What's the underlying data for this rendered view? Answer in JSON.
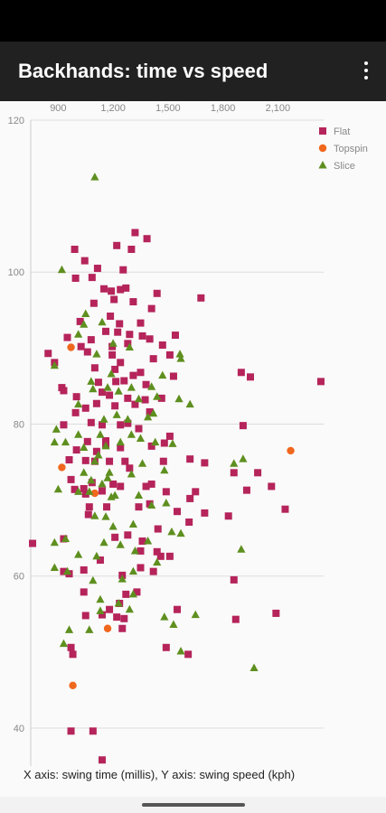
{
  "app": {
    "title": "Backhands: time vs speed",
    "menu_icon": "more-vert-icon"
  },
  "caption": "X axis: swing time (millis), Y axis: swing speed (kph)",
  "chart_data": {
    "type": "scatter",
    "title": "",
    "xlabel": "swing time (millis)",
    "ylabel": "swing speed (kph)",
    "xlim": [
      750,
      2350
    ],
    "ylim": [
      35,
      120
    ],
    "x_ticks": [
      "900",
      "1,200",
      "1,500",
      "1,800",
      "2,100"
    ],
    "x_tick_values": [
      900,
      1200,
      1500,
      1800,
      2100
    ],
    "y_ticks": [
      "40",
      "60",
      "80",
      "100",
      "120"
    ],
    "y_tick_values": [
      40,
      60,
      80,
      100,
      120
    ],
    "legend": "top-right",
    "grid": "horizontal",
    "series": [
      {
        "name": "Flat",
        "color": "#b5245a",
        "marker": "square",
        "points": [
          [
            1320,
            105.2
          ],
          [
            1385,
            104.4
          ],
          [
            1220,
            103.5
          ],
          [
            990,
            103
          ],
          [
            1300,
            103
          ],
          [
            1045,
            101.5
          ],
          [
            1115,
            100.5
          ],
          [
            1255,
            100.3
          ],
          [
            1085,
            99.3
          ],
          [
            995,
            99.2
          ],
          [
            1150,
            97.8
          ],
          [
            1190,
            97.5
          ],
          [
            1240,
            97.7
          ],
          [
            1270,
            97.9
          ],
          [
            1440,
            97.2
          ],
          [
            1680,
            96.6
          ],
          [
            1205,
            96.4
          ],
          [
            1310,
            96.1
          ],
          [
            1095,
            95.9
          ],
          [
            1410,
            95.2
          ],
          [
            1185,
            94.2
          ],
          [
            1020,
            93.5
          ],
          [
            1235,
            93.2
          ],
          [
            1350,
            93.3
          ],
          [
            1160,
            92.2
          ],
          [
            1225,
            92.1
          ],
          [
            1290,
            91.8
          ],
          [
            1360,
            91.6
          ],
          [
            1400,
            91.2
          ],
          [
            1540,
            91.7
          ],
          [
            950,
            91.4
          ],
          [
            1080,
            91.1
          ],
          [
            1280,
            90.6
          ],
          [
            1470,
            90.4
          ],
          [
            1025,
            90.2
          ],
          [
            1195,
            90.2
          ],
          [
            1060,
            89.5
          ],
          [
            1510,
            89.1
          ],
          [
            845,
            89.3
          ],
          [
            1195,
            89.1
          ],
          [
            1420,
            88.6
          ],
          [
            1240,
            88.1
          ],
          [
            880,
            88.1
          ],
          [
            1100,
            87.4
          ],
          [
            1210,
            87.2
          ],
          [
            1350,
            86.8
          ],
          [
            1310,
            86.4
          ],
          [
            1530,
            86.3
          ],
          [
            1900,
            86.8
          ],
          [
            1950,
            86.2
          ],
          [
            2335,
            85.6
          ],
          [
            1120,
            85.5
          ],
          [
            1215,
            85.6
          ],
          [
            1260,
            85.7
          ],
          [
            1380,
            85.2
          ],
          [
            920,
            84.8
          ],
          [
            1140,
            84.2
          ],
          [
            930,
            84.4
          ],
          [
            1180,
            83.8
          ],
          [
            1000,
            83.6
          ],
          [
            1280,
            83.4
          ],
          [
            1375,
            83.2
          ],
          [
            1465,
            83.4
          ],
          [
            1320,
            82.6
          ],
          [
            1110,
            82.7
          ],
          [
            1210,
            82.4
          ],
          [
            1050,
            82.1
          ],
          [
            995,
            81.5
          ],
          [
            1400,
            81.6
          ],
          [
            930,
            79.9
          ],
          [
            1080,
            80.2
          ],
          [
            1140,
            79.9
          ],
          [
            1240,
            79.9
          ],
          [
            1280,
            80.1
          ],
          [
            1340,
            79.4
          ],
          [
            1910,
            79.8
          ],
          [
            1510,
            78.4
          ],
          [
            1060,
            77.7
          ],
          [
            1160,
            77.8
          ],
          [
            1410,
            77.1
          ],
          [
            1480,
            77.5
          ],
          [
            1160,
            77.3
          ],
          [
            1240,
            76.9
          ],
          [
            1000,
            76.6
          ],
          [
            1110,
            76.4
          ],
          [
            1620,
            75.4
          ],
          [
            1475,
            75.1
          ],
          [
            960,
            75.3
          ],
          [
            1100,
            75.1
          ],
          [
            1180,
            75.1
          ],
          [
            1265,
            75.1
          ],
          [
            1700,
            74.9
          ],
          [
            1990,
            73.6
          ],
          [
            2065,
            71.8
          ],
          [
            1050,
            75.2
          ],
          [
            1290,
            74.2
          ],
          [
            1860,
            73.6
          ],
          [
            970,
            72.7
          ],
          [
            1085,
            72.3
          ],
          [
            1200,
            72.1
          ],
          [
            1410,
            72.1
          ],
          [
            1490,
            71.1
          ],
          [
            1650,
            71.1
          ],
          [
            1930,
            71.3
          ],
          [
            1140,
            71.2
          ],
          [
            1240,
            71.8
          ],
          [
            1380,
            71.8
          ],
          [
            1040,
            71.5
          ],
          [
            990,
            71.4
          ],
          [
            1050,
            70.8
          ],
          [
            1620,
            70.2
          ],
          [
            1400,
            69.5
          ],
          [
            1070,
            69.1
          ],
          [
            1165,
            69.1
          ],
          [
            1340,
            69.1
          ],
          [
            2140,
            68.8
          ],
          [
            1700,
            68.3
          ],
          [
            1550,
            68.5
          ],
          [
            1830,
            67.9
          ],
          [
            1065,
            68.1
          ],
          [
            1615,
            67.1
          ],
          [
            1445,
            66.2
          ],
          [
            1210,
            65.1
          ],
          [
            1280,
            65.4
          ],
          [
            1360,
            64.6
          ],
          [
            930,
            64.9
          ],
          [
            1350,
            63.3
          ],
          [
            760,
            64.3
          ],
          [
            1440,
            63.2
          ],
          [
            1510,
            62.6
          ],
          [
            1460,
            62.6
          ],
          [
            1130,
            62.1
          ],
          [
            930,
            60.6
          ],
          [
            1350,
            61.1
          ],
          [
            1040,
            60.8
          ],
          [
            960,
            60.3
          ],
          [
            1250,
            60.1
          ],
          [
            1420,
            60.6
          ],
          [
            1860,
            59.5
          ],
          [
            1270,
            57.6
          ],
          [
            1040,
            57.9
          ],
          [
            1330,
            57.9
          ],
          [
            1235,
            56.4
          ],
          [
            1180,
            55.6
          ],
          [
            1140,
            54.9
          ],
          [
            1220,
            54.6
          ],
          [
            1260,
            54.4
          ],
          [
            1050,
            54.8
          ],
          [
            1550,
            55.6
          ],
          [
            1870,
            54.3
          ],
          [
            2090,
            55.1
          ],
          [
            1250,
            53.1
          ],
          [
            970,
            50.6
          ],
          [
            1490,
            50.6
          ],
          [
            1610,
            49.7
          ],
          [
            980,
            49.7
          ],
          [
            970,
            39.6
          ],
          [
            1090,
            39.6
          ],
          [
            1140,
            35.8
          ]
        ]
      },
      {
        "name": "Topspin",
        "color": "#f0671e",
        "marker": "circle",
        "points": [
          [
            970,
            90.1
          ],
          [
            920,
            74.3
          ],
          [
            1100,
            70.9
          ],
          [
            1170,
            53.1
          ],
          [
            980,
            45.6
          ],
          [
            2170,
            76.5
          ]
        ]
      },
      {
        "name": "Slice",
        "color": "#5e8f1f",
        "marker": "triangle",
        "points": [
          [
            1100,
            112.5
          ],
          [
            920,
            100.3
          ],
          [
            1050,
            94.5
          ],
          [
            1040,
            93.1
          ],
          [
            1140,
            93.4
          ],
          [
            1010,
            91.8
          ],
          [
            1200,
            90.6
          ],
          [
            1290,
            90.1
          ],
          [
            1110,
            89.2
          ],
          [
            1565,
            89.2
          ],
          [
            1570,
            88.6
          ],
          [
            880,
            87.7
          ],
          [
            1470,
            86.4
          ],
          [
            1190,
            86.6
          ],
          [
            1080,
            85.6
          ],
          [
            1300,
            84.8
          ],
          [
            1170,
            84.8
          ],
          [
            1090,
            84.6
          ],
          [
            1410,
            84.9
          ],
          [
            1230,
            84.3
          ],
          [
            1440,
            83.6
          ],
          [
            1340,
            83.3
          ],
          [
            1560,
            83.3
          ],
          [
            1620,
            82.6
          ],
          [
            1010,
            82.6
          ],
          [
            1420,
            81.4
          ],
          [
            1280,
            80.6
          ],
          [
            1150,
            80.6
          ],
          [
            1220,
            81.2
          ],
          [
            1390,
            80.9
          ],
          [
            890,
            79.3
          ],
          [
            1010,
            78.6
          ],
          [
            1300,
            78.6
          ],
          [
            1130,
            78.6
          ],
          [
            1350,
            78.1
          ],
          [
            1240,
            77.6
          ],
          [
            1430,
            77.6
          ],
          [
            1525,
            77.4
          ],
          [
            1160,
            77.1
          ],
          [
            880,
            77.6
          ],
          [
            940,
            77.6
          ],
          [
            1040,
            76.9
          ],
          [
            1120,
            75.9
          ],
          [
            1100,
            75.1
          ],
          [
            1910,
            75.4
          ],
          [
            1360,
            74.8
          ],
          [
            1860,
            74.8
          ],
          [
            1480,
            73.9
          ],
          [
            1300,
            73.4
          ],
          [
            1180,
            73.6
          ],
          [
            1040,
            73.6
          ],
          [
            1170,
            72.9
          ],
          [
            1080,
            72.6
          ],
          [
            1140,
            72.1
          ],
          [
            900,
            71.4
          ],
          [
            1070,
            71.1
          ],
          [
            1010,
            71.1
          ],
          [
            1210,
            70.6
          ],
          [
            1190,
            70.4
          ],
          [
            1340,
            70.6
          ],
          [
            1490,
            69.6
          ],
          [
            1410,
            69.3
          ],
          [
            1100,
            67.9
          ],
          [
            1160,
            67.8
          ],
          [
            1310,
            66.8
          ],
          [
            1200,
            66.5
          ],
          [
            1520,
            65.8
          ],
          [
            1570,
            65.6
          ],
          [
            1150,
            64.4
          ],
          [
            1390,
            64.6
          ],
          [
            1240,
            64.1
          ],
          [
            880,
            64.4
          ],
          [
            940,
            64.9
          ],
          [
            1900,
            63.5
          ],
          [
            1320,
            63.3
          ],
          [
            1010,
            62.8
          ],
          [
            1110,
            62.6
          ],
          [
            1440,
            61.8
          ],
          [
            880,
            61.1
          ],
          [
            950,
            60.6
          ],
          [
            1310,
            60.6
          ],
          [
            1250,
            59.6
          ],
          [
            1090,
            59.4
          ],
          [
            1310,
            57.6
          ],
          [
            1130,
            56.9
          ],
          [
            1230,
            56.4
          ],
          [
            1290,
            55.6
          ],
          [
            1130,
            55.4
          ],
          [
            1650,
            54.9
          ],
          [
            1480,
            54.6
          ],
          [
            1530,
            53.6
          ],
          [
            1070,
            52.9
          ],
          [
            960,
            52.9
          ],
          [
            930,
            51.1
          ],
          [
            1570,
            50.1
          ],
          [
            1970,
            47.9
          ]
        ]
      }
    ]
  }
}
